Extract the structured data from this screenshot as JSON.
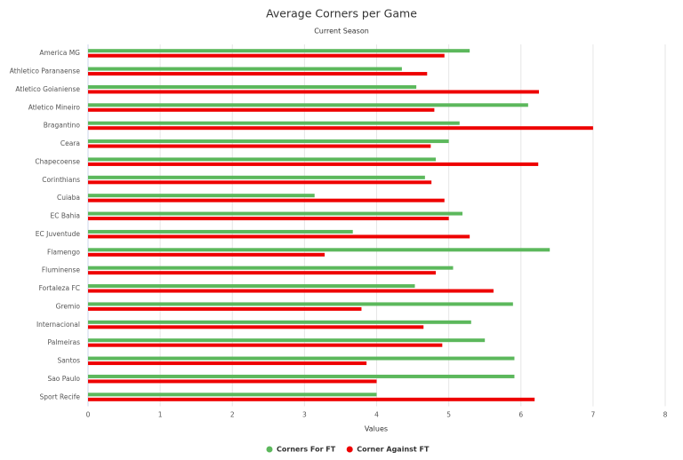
{
  "chart_data": {
    "type": "hbar",
    "title": "Average Corners per Game",
    "subtitle": "Current Season",
    "x_label": "Values",
    "categories": [
      "America MG",
      "Athletico Paranaense",
      "Atletico Goianiense",
      "Atletico Mineiro",
      "Bragantino",
      "Ceara",
      "Chapecoense",
      "Corinthians",
      "Cuiaba",
      "EC Bahia",
      "EC Juventude",
      "Flamengo",
      "Fluminense",
      "Fortaleza FC",
      "Gremio",
      "Internacional",
      "Palmeiras",
      "Santos",
      "Sao Paulo",
      "Sport Recife"
    ],
    "series": [
      {
        "name": "Corners For FT",
        "color": "#5cb85c",
        "values": [
          5.29,
          4.35,
          4.55,
          6.1,
          5.15,
          5.0,
          4.82,
          4.67,
          3.14,
          5.19,
          3.67,
          6.4,
          5.06,
          4.53,
          5.89,
          5.31,
          5.5,
          5.91,
          5.91,
          4.0
        ]
      },
      {
        "name": "Corner Against FT",
        "color": "#ee0000",
        "values": [
          4.94,
          4.7,
          6.25,
          4.8,
          7.0,
          4.75,
          6.24,
          4.76,
          4.94,
          5.0,
          5.29,
          3.28,
          4.82,
          5.62,
          3.79,
          4.65,
          4.91,
          3.86,
          4.0,
          6.19
        ]
      }
    ],
    "xlim": [
      0,
      8
    ],
    "xticks": [
      0,
      1,
      2,
      3,
      4,
      5,
      6,
      7,
      8
    ],
    "grid": true,
    "legend": "bottom"
  }
}
